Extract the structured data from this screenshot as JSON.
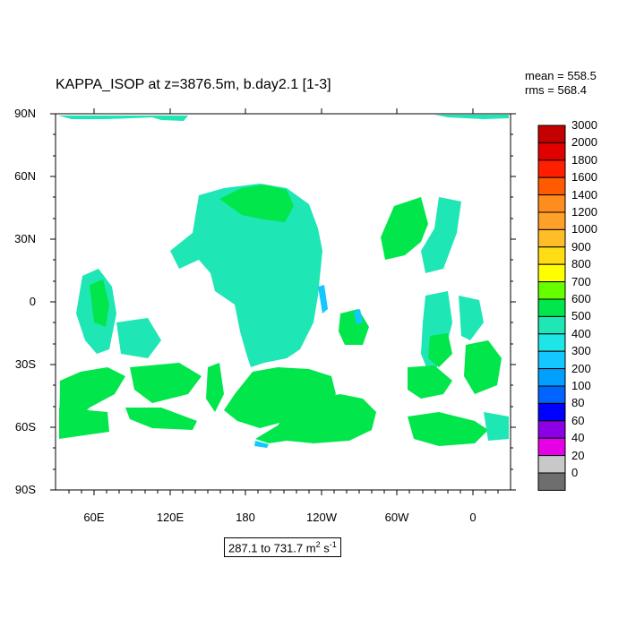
{
  "title": "KAPPA_ISOP at z=3876.5m, b.day2.1 [1-3]",
  "stats": {
    "mean": "mean = 558.5",
    "rms": "rms = 568.4"
  },
  "y_ticks": [
    "90N",
    "60N",
    "30N",
    "0",
    "30S",
    "60S",
    "90S"
  ],
  "x_ticks": [
    "60E",
    "120E",
    "180",
    "120W",
    "60W",
    "0"
  ],
  "range": {
    "text": "287.1 to 731.7 m",
    "sup1": "2",
    "mid": " s",
    "sup2": "-1"
  },
  "legend": {
    "labels": [
      "3000",
      "2000",
      "1800",
      "1600",
      "1400",
      "1200",
      "1000",
      "900",
      "800",
      "700",
      "600",
      "500",
      "400",
      "300",
      "200",
      "100",
      "80",
      "60",
      "40",
      "20",
      "0"
    ],
    "colors": [
      "#c40000",
      "#e00000",
      "#ff1e00",
      "#ff5a00",
      "#ff8c1e",
      "#ffa028",
      "#ffbe28",
      "#ffdc14",
      "#ffff00",
      "#66ff00",
      "#00e64b",
      "#1ee6b4",
      "#1ee6e6",
      "#14c8ff",
      "#00a0ff",
      "#0064ff",
      "#0000ff",
      "#8c00e6",
      "#e600e6",
      "#c8c8c8",
      "#6e6e6e"
    ]
  },
  "colors": {
    "ocean_field": "#1ee6b4",
    "land_field": "#00e64b",
    "edge": "#14c8ff",
    "missing": "#ffffff"
  }
}
